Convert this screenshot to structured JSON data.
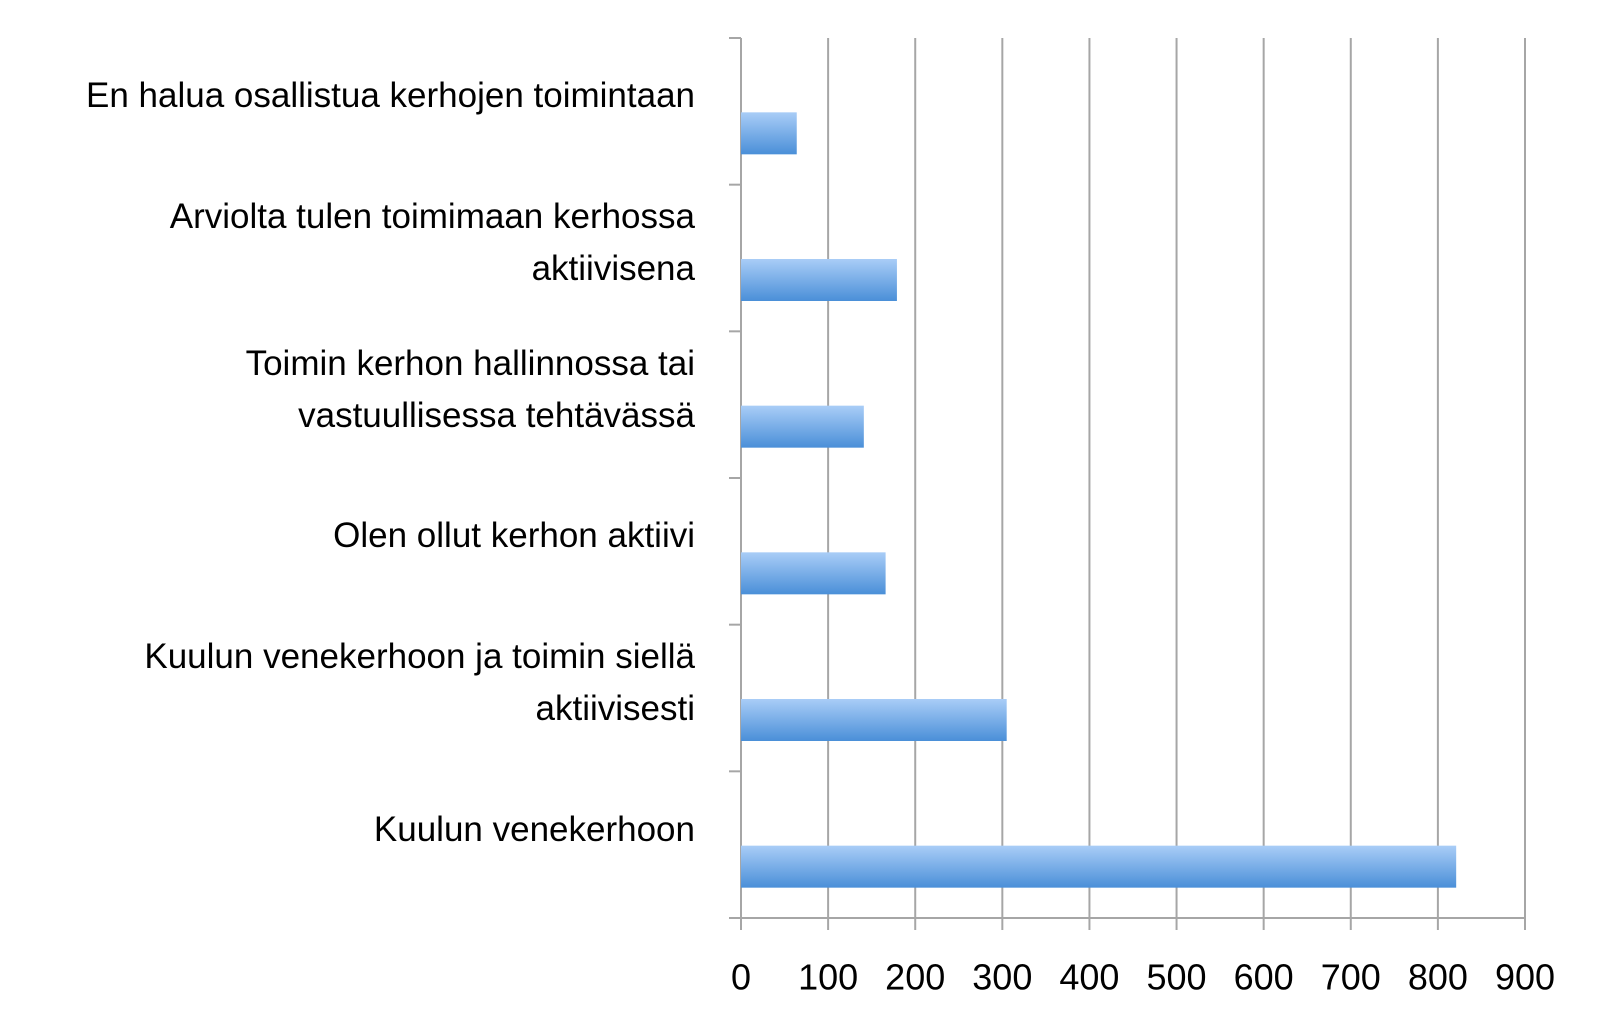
{
  "chart_data": {
    "type": "bar",
    "orientation": "horizontal",
    "categories": [
      "En halua osallistua kerhojen toimintaan",
      "Arviolta tulen toimimaan kerhossa aktiivisena",
      "Toimin kerhon hallinnossa tai vastuullisessa tehtävässä",
      "Olen ollut kerhon aktiivi",
      "Kuulun venekerhoon ja toimin siellä aktiivisesti",
      "Kuulun venekerhoon"
    ],
    "values": [
      64,
      179,
      141,
      166,
      305,
      821
    ],
    "color": "#5b9bd5",
    "xlim": [
      0,
      900
    ],
    "xticks": [
      0,
      100,
      200,
      300,
      400,
      500,
      600,
      700,
      800,
      900
    ],
    "grid": true
  }
}
